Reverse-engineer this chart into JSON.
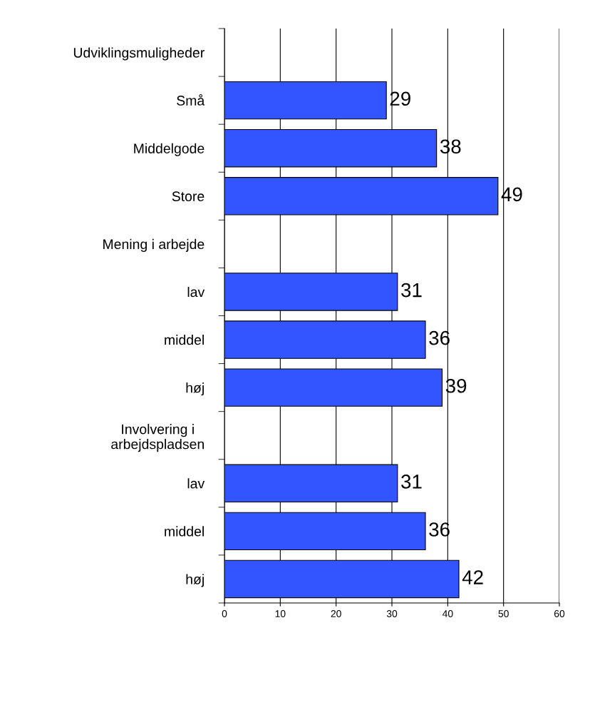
{
  "chart_data": {
    "type": "bar",
    "orientation": "horizontal",
    "categories": [
      "Udviklingsmuligheder",
      "Små",
      "Middelgode",
      "Store",
      "Mening i arbejde",
      "lav",
      "middel",
      "høj",
      "Involvering i\narbejdspladsen",
      "lav",
      "middel",
      "høj"
    ],
    "values": [
      null,
      29,
      38,
      49,
      null,
      31,
      36,
      39,
      null,
      31,
      36,
      42
    ],
    "color": "#3355ff",
    "data_labels": true,
    "xlim": [
      0,
      60
    ],
    "xticks": [
      0,
      10,
      20,
      30,
      40,
      50,
      60
    ],
    "grid": "x",
    "legend": false
  }
}
